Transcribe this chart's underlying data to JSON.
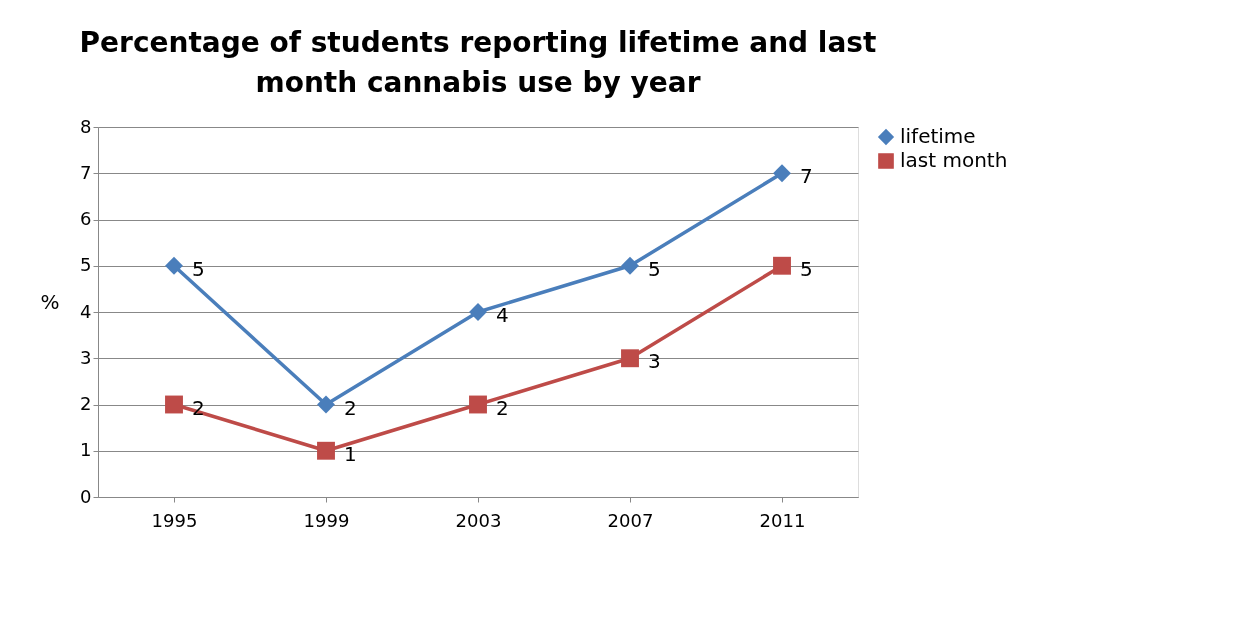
{
  "chart_data": {
    "type": "line",
    "title": "Percentage of students reporting lifetime and last month cannabis use by year",
    "ylabel": "%",
    "categories": [
      "1995",
      "1999",
      "2003",
      "2007",
      "2011"
    ],
    "series": [
      {
        "name": "lifetime",
        "color": "#4a7ebb",
        "marker": "diamond",
        "values": [
          5,
          2,
          4,
          5,
          7
        ]
      },
      {
        "name": "last month",
        "color": "#be4b48",
        "marker": "square",
        "values": [
          2,
          1,
          2,
          3,
          5
        ]
      }
    ],
    "ylim": [
      0,
      8
    ],
    "yticks": [
      0,
      1,
      2,
      3,
      4,
      5,
      6,
      7,
      8
    ],
    "grid": "y",
    "legend": "right",
    "data_labels": true
  }
}
